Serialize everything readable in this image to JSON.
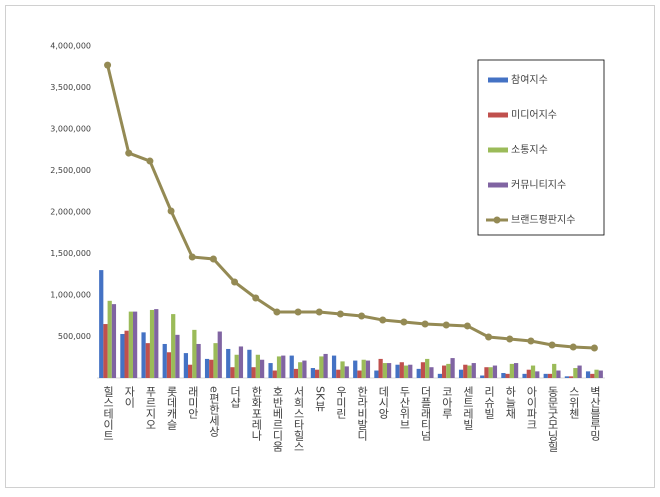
{
  "chart_data": {
    "type": "bar-line",
    "categories": [
      "힐스테이트",
      "자이",
      "푸르지오",
      "롯데캐슬",
      "래미안",
      "e편한세상",
      "더샵",
      "한화포레나",
      "호반베르디움",
      "서희스타힐스",
      "SK뷰",
      "우미린",
      "한라비발디",
      "데시앙",
      "두산위브",
      "더플래티넘",
      "코아루",
      "센트레빌",
      "리슈빌",
      "하늘채",
      "아이파크",
      "동문굿모닝힐",
      "스위첸",
      "벽산블루밍"
    ],
    "series": [
      {
        "name": "참여지수",
        "color": "#4472c4",
        "kind": "bar",
        "values": [
          1300000,
          530000,
          550000,
          410000,
          300000,
          230000,
          350000,
          340000,
          180000,
          270000,
          120000,
          270000,
          210000,
          90000,
          160000,
          110000,
          50000,
          100000,
          30000,
          60000,
          50000,
          50000,
          20000,
          80000
        ]
      },
      {
        "name": "미디어지수",
        "color": "#c0504d",
        "kind": "bar",
        "values": [
          650000,
          570000,
          420000,
          310000,
          160000,
          220000,
          130000,
          130000,
          90000,
          110000,
          100000,
          100000,
          90000,
          230000,
          190000,
          190000,
          150000,
          160000,
          130000,
          50000,
          100000,
          50000,
          20000,
          50000
        ]
      },
      {
        "name": "소통지수",
        "color": "#9bbb59",
        "kind": "bar",
        "values": [
          930000,
          800000,
          820000,
          770000,
          580000,
          420000,
          280000,
          280000,
          260000,
          190000,
          260000,
          200000,
          220000,
          180000,
          150000,
          230000,
          170000,
          150000,
          130000,
          170000,
          150000,
          170000,
          120000,
          100000
        ]
      },
      {
        "name": "커뮤니티지수",
        "color": "#8064a2",
        "kind": "bar",
        "values": [
          890000,
          800000,
          830000,
          520000,
          410000,
          560000,
          380000,
          220000,
          270000,
          210000,
          290000,
          140000,
          210000,
          180000,
          160000,
          130000,
          240000,
          180000,
          150000,
          180000,
          80000,
          90000,
          150000,
          90000
        ]
      },
      {
        "name": "브랜드평판지수",
        "color": "#948a54",
        "kind": "line",
        "values": [
          3770000,
          2710000,
          2614000,
          2012000,
          1458000,
          1434000,
          1157000,
          964000,
          795000,
          795000,
          795000,
          771000,
          747000,
          699000,
          675000,
          651000,
          639000,
          627000,
          494000,
          470000,
          446000,
          398000,
          373000,
          361000
        ]
      }
    ],
    "ylim": [
      0,
      4000000
    ],
    "yticks": [
      {
        "value": 500000,
        "label": "500,000"
      },
      {
        "value": 1000000,
        "label": "1,000,000"
      },
      {
        "value": 1500000,
        "label": "1,500,000"
      },
      {
        "value": 2000000,
        "label": "2,000,000"
      },
      {
        "value": 2500000,
        "label": "2,500,000"
      },
      {
        "value": 3000000,
        "label": "3,000,000"
      },
      {
        "value": 3500000,
        "label": "3,500,000"
      },
      {
        "value": 4000000,
        "label": "4,000,000"
      }
    ],
    "legend": "upper right"
  }
}
